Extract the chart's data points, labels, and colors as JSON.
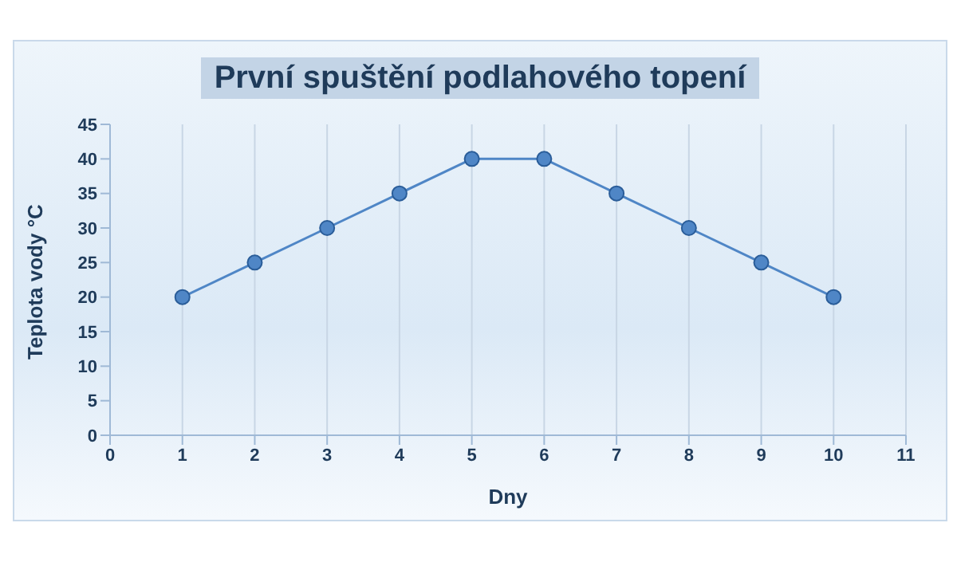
{
  "chart_data": {
    "type": "line",
    "title": "První spuštění podlahového topení",
    "xlabel": "Dny",
    "ylabel": "Teplota vody °C",
    "x": [
      1,
      2,
      3,
      4,
      5,
      6,
      7,
      8,
      9,
      10
    ],
    "series": [
      {
        "color": "#4f86c6",
        "values": [
          20,
          25,
          30,
          35,
          40,
          40,
          35,
          30,
          25,
          20
        ]
      }
    ],
    "xlim": [
      0,
      11
    ],
    "xticks": [
      0,
      1,
      2,
      3,
      4,
      5,
      6,
      7,
      8,
      9,
      10,
      11
    ],
    "ylim": [
      0,
      45
    ],
    "yticks": [
      0,
      5,
      10,
      15,
      20,
      25,
      30,
      35,
      40,
      45
    ],
    "grid": "x",
    "marker": "circle",
    "line_style": "solid",
    "legend": false
  }
}
